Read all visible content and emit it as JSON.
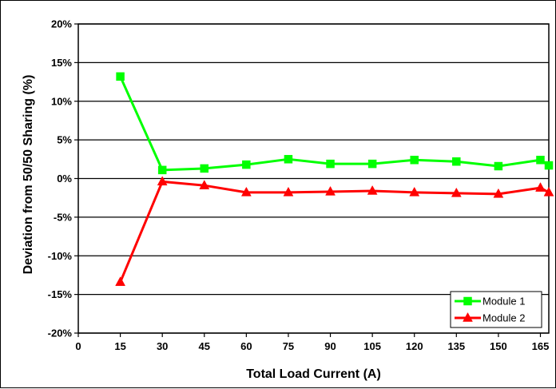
{
  "chart_data": {
    "type": "line",
    "title": "",
    "xlabel": "Total Load Current (A)",
    "ylabel": "Deviation from 50/50 Sharing (%)",
    "xlim": [
      0,
      168
    ],
    "ylim": [
      -20,
      20
    ],
    "x_ticks": [
      0,
      15,
      30,
      45,
      60,
      75,
      90,
      105,
      120,
      135,
      150,
      165
    ],
    "x_tick_labels": [
      "0",
      "15",
      "30",
      "45",
      "60",
      "75",
      "90",
      "105",
      "120",
      "135",
      "150",
      "165"
    ],
    "y_ticks": [
      -20,
      -15,
      -10,
      -5,
      0,
      5,
      10,
      15,
      20
    ],
    "y_tick_labels": [
      "-20%",
      "-15%",
      "-10%",
      "-5%",
      "0%",
      "5%",
      "10%",
      "15%",
      "20%"
    ],
    "grid": "horizontal",
    "legend_position": "bottom-right",
    "series": [
      {
        "name": "Module 1",
        "color": "#00ff00",
        "marker": "square",
        "x": [
          15,
          30,
          45,
          60,
          75,
          90,
          105,
          120,
          135,
          150,
          165,
          168
        ],
        "y": [
          13.2,
          1.1,
          1.3,
          1.8,
          2.5,
          1.9,
          1.9,
          2.4,
          2.2,
          1.6,
          2.4,
          1.7
        ]
      },
      {
        "name": "Module 2",
        "color": "#ff0000",
        "marker": "triangle",
        "x": [
          15,
          30,
          45,
          60,
          75,
          90,
          105,
          120,
          135,
          150,
          165,
          168
        ],
        "y": [
          -13.4,
          -0.4,
          -0.9,
          -1.8,
          -1.8,
          -1.7,
          -1.6,
          -1.8,
          -1.9,
          -2.0,
          -1.2,
          -1.8
        ]
      }
    ]
  }
}
